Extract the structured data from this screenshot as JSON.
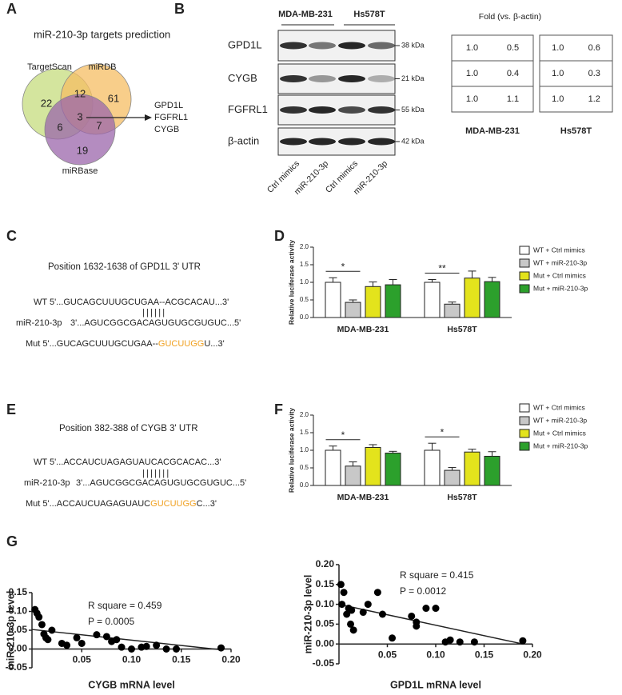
{
  "panel_labels": [
    "A",
    "B",
    "C",
    "D",
    "E",
    "F",
    "G"
  ],
  "venn": {
    "title": "miR-210-3p targets prediction",
    "sets": [
      "TargetScan",
      "miRDB",
      "miRBase"
    ],
    "region_counts": [
      22,
      12,
      61,
      6,
      3,
      7,
      19
    ],
    "targets": [
      "GPD1L",
      "FGFRL1",
      "CYGB"
    ]
  },
  "blot": {
    "cell_lines": [
      "MDA-MB-231",
      "Hs578T"
    ],
    "proteins": [
      "GPD1L",
      "CYGB",
      "FGFRL1",
      "β-actin"
    ],
    "sizes": [
      "38 kDa",
      "21 kDa",
      "55 kDa",
      "42 kDa"
    ],
    "lanes": [
      "Ctrl mimics",
      "miR-210-3p",
      "Ctrl mimics",
      "miR-210-3p"
    ]
  },
  "fold_table": {
    "title": "Fold (vs. β-actin)",
    "tables": [
      {
        "label": "MDA-MB-231",
        "rows": [
          [
            "1.0",
            "0.5"
          ],
          [
            "1.0",
            "0.4"
          ],
          [
            "1.0",
            "1.1"
          ]
        ]
      },
      {
        "label": "Hs578T",
        "rows": [
          [
            "1.0",
            "0.6"
          ],
          [
            "1.0",
            "0.3"
          ],
          [
            "1.0",
            "1.2"
          ]
        ]
      }
    ]
  },
  "sequences": [
    {
      "title": "Position 1632-1638 of GPD1L 3' UTR",
      "wt": "WT 5'...GUCAGCUUUGCUGAA--ACGCACAU...3'",
      "pairing": "||||||",
      "mirna_name": "miR-210-3p",
      "mirna": "3'...AGUCGGCGACAGUGUGCGUGUC...5'",
      "mut": [
        "Mut 5'...GUCAGCUUUGCUGAA--",
        "GUCUUGG",
        "U...3'"
      ]
    },
    {
      "title": "Position 382-388 of CYGB 3' UTR",
      "wt": "WT 5'...ACCAUCUAGAGUAUCACGCACAC...3'",
      "pairing": "|||||||",
      "mirna_name": "miR-210-3p",
      "mirna": "3'...AGUCGGCGACAGUGUGCGUGUC...5'",
      "mut": [
        "Mut 5'...ACCAUCUAGAGUAUC",
        "GUCUUGG",
        "C...3'"
      ]
    }
  ],
  "chart_data": [
    {
      "type": "bar",
      "ylabel": "Relative luciferase activity",
      "categories": [
        "MDA-MB-231",
        "Hs578T"
      ],
      "series": [
        {
          "name": "WT + Ctrl mimics",
          "color": "#ffffff",
          "values": [
            1.0,
            1.0
          ],
          "errors": [
            0.13,
            0.08
          ]
        },
        {
          "name": "WT + miR-210-3p",
          "color": "#c8c8c8",
          "values": [
            0.43,
            0.38
          ],
          "errors": [
            0.07,
            0.06
          ]
        },
        {
          "name": "Mut + Ctrl mimics",
          "color": "#e3e31c",
          "values": [
            0.88,
            1.12
          ],
          "errors": [
            0.13,
            0.2
          ]
        },
        {
          "name": "Mut + miR-210-3p",
          "color": "#2ca02c",
          "values": [
            0.93,
            1.02
          ],
          "errors": [
            0.15,
            0.12
          ]
        }
      ],
      "significance": [
        "*",
        "**"
      ],
      "ylim": [
        0,
        2
      ],
      "yticks": [
        {
          "value": 0,
          "label": "0.0"
        },
        0.5,
        {
          "value": 1,
          "label": "1.0"
        },
        1.5,
        {
          "value": 2,
          "label": "2.0"
        }
      ]
    },
    {
      "type": "bar",
      "ylabel": "Relative luciferase activity",
      "categories": [
        "MDA-MB-231",
        "Hs578T"
      ],
      "series": [
        {
          "name": "WT + Ctrl mimics",
          "color": "#ffffff",
          "values": [
            1.0,
            1.0
          ],
          "errors": [
            0.12,
            0.2
          ]
        },
        {
          "name": "WT + miR-210-3p",
          "color": "#c8c8c8",
          "values": [
            0.55,
            0.43
          ],
          "errors": [
            0.12,
            0.08
          ]
        },
        {
          "name": "Mut + Ctrl mimics",
          "color": "#e3e31c",
          "values": [
            1.08,
            0.95
          ],
          "errors": [
            0.08,
            0.08
          ]
        },
        {
          "name": "Mut + miR-210-3p",
          "color": "#2ca02c",
          "values": [
            0.92,
            0.83
          ],
          "errors": [
            0.05,
            0.13
          ]
        }
      ],
      "significance": [
        "*",
        "*"
      ],
      "ylim": [
        0,
        2
      ],
      "yticks": [
        {
          "value": 0,
          "label": "0.0"
        },
        0.5,
        {
          "value": 1,
          "label": "1.0"
        },
        1.5,
        {
          "value": 2,
          "label": "2.0"
        }
      ]
    },
    {
      "type": "scatter",
      "xlabel": "CYGB mRNA level",
      "ylabel": "miR-210-3p level",
      "color": "#000000",
      "x": [
        0.003,
        0.005,
        0.007,
        0.01,
        0.012,
        0.014,
        0.016,
        0.02,
        0.03,
        0.035,
        0.045,
        0.05,
        0.065,
        0.075,
        0.08,
        0.085,
        0.09,
        0.1,
        0.11,
        0.115,
        0.125,
        0.135,
        0.145,
        0.19
      ],
      "values": [
        0.105,
        0.095,
        0.085,
        0.065,
        0.04,
        0.03,
        0.025,
        0.05,
        0.015,
        0.01,
        0.03,
        0.015,
        0.038,
        0.033,
        0.02,
        0.025,
        0.005,
        0.0,
        0.005,
        0.007,
        0.01,
        0.0,
        0.0,
        0.003
      ],
      "fit_line": {
        "x": [
          0,
          0.19
        ],
        "y": [
          0.052,
          -0.002
        ]
      },
      "annotations": [
        "R square = 0.459",
        "P = 0.0005"
      ],
      "xlim": [
        0,
        0.2
      ],
      "xticks": [
        0.05,
        {
          "value": 0.1,
          "label": "0.10"
        },
        0.15,
        {
          "value": 0.2,
          "label": "0.20"
        }
      ],
      "ylim": [
        -0.05,
        0.15
      ],
      "yticks": [
        -0.05,
        {
          "value": 0,
          "label": "0.00"
        },
        0.05,
        {
          "value": 0.1,
          "label": "0.10"
        },
        0.15
      ]
    },
    {
      "type": "scatter",
      "xlabel": "GPD1L mRNA level",
      "ylabel": "miR-210-3p level",
      "color": "#000000",
      "x": [
        0.002,
        0.005,
        0.003,
        0.008,
        0.01,
        0.012,
        0.015,
        0.013,
        0.025,
        0.03,
        0.04,
        0.045,
        0.055,
        0.075,
        0.08,
        0.08,
        0.09,
        0.1,
        0.11,
        0.115,
        0.125,
        0.14,
        0.19
      ],
      "values": [
        0.15,
        0.13,
        0.1,
        0.075,
        0.09,
        0.05,
        0.035,
        0.085,
        0.08,
        0.1,
        0.13,
        0.075,
        0.015,
        0.07,
        0.055,
        0.045,
        0.09,
        0.09,
        0.005,
        0.01,
        0.005,
        0.005,
        0.008
      ],
      "fit_line": {
        "x": [
          0,
          0.19
        ],
        "y": [
          0.1,
          0.0
        ]
      },
      "annotations": [
        "R square = 0.415",
        "P = 0.0012"
      ],
      "xlim": [
        0,
        0.2
      ],
      "xticks": [
        0.05,
        {
          "value": 0.1,
          "label": "0.10"
        },
        0.15,
        {
          "value": 0.2,
          "label": "0.20"
        }
      ],
      "ylim": [
        -0.05,
        0.2
      ],
      "yticks": [
        -0.05,
        {
          "value": 0,
          "label": "0.00"
        },
        0.05,
        {
          "value": 0.1,
          "label": "0.10"
        },
        0.15,
        {
          "value": 0.2,
          "label": "0.20"
        }
      ]
    }
  ]
}
